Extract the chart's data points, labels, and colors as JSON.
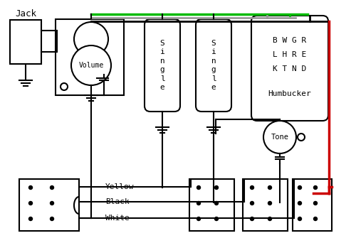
{
  "bg": "#ffffff",
  "blk": "#000000",
  "grn": "#00bb00",
  "red": "#cc0000",
  "gry": "#999999",
  "jack_label": "Jack",
  "volume_label": "Volume",
  "tone_label": "Tone",
  "single_label": "S\ni\nn\ng\nl\ne",
  "hb_line1": "B W G R",
  "hb_line2": "L H R E",
  "hb_line3": "K T N D",
  "hb_label": "Humbucker",
  "yellow_label": "Yellow",
  "black_label": "Black",
  "white_label": "White"
}
